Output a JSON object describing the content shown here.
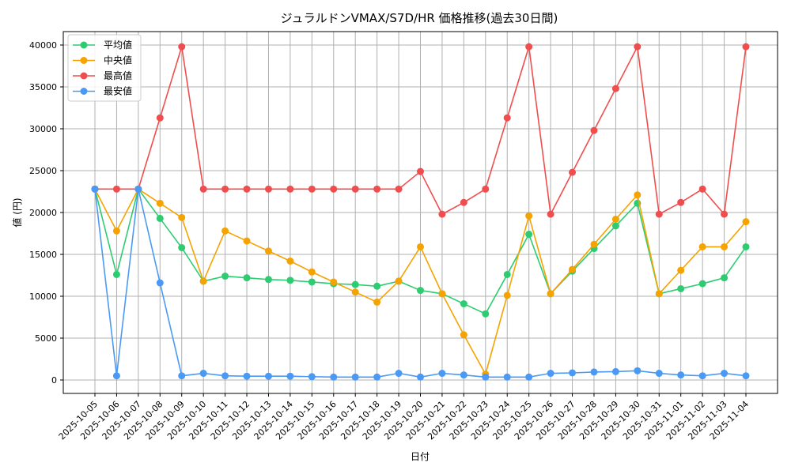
{
  "chart_data": {
    "type": "line",
    "title": "ジュラルドンVMAX/S7D/HR 価格推移(過去30日間)",
    "xlabel": "日付",
    "ylabel": "値 (円)",
    "ylim": [
      -1500,
      42000
    ],
    "yticks": [
      0,
      5000,
      10000,
      15000,
      20000,
      25000,
      30000,
      35000,
      40000
    ],
    "grid": true,
    "legend_position": "upper left",
    "x": [
      "2025-10-05",
      "2025-10-06",
      "2025-10-07",
      "2025-10-08",
      "2025-10-09",
      "2025-10-10",
      "2025-10-11",
      "2025-10-12",
      "2025-10-13",
      "2025-10-14",
      "2025-10-15",
      "2025-10-16",
      "2025-10-17",
      "2025-10-18",
      "2025-10-19",
      "2025-10-20",
      "2025-10-21",
      "2025-10-22",
      "2025-10-23",
      "2025-10-24",
      "2025-10-25",
      "2025-10-26",
      "2025-10-27",
      "2025-10-28",
      "2025-10-29",
      "2025-10-30",
      "2025-10-31",
      "2025-11-01",
      "2025-11-02",
      "2025-11-03",
      "2025-11-04"
    ],
    "series": [
      {
        "name": "平均値",
        "color": "#2ecc71",
        "values": [
          22800,
          12600,
          22800,
          19300,
          15800,
          11800,
          12400,
          12200,
          12000,
          11900,
          11700,
          11500,
          11400,
          11200,
          11800,
          10700,
          10300,
          9100,
          7900,
          12600,
          17400,
          10300,
          13000,
          15700,
          18400,
          21100,
          10300,
          10900,
          11500,
          12200,
          15900
        ]
      },
      {
        "name": "中央値",
        "color": "#f5a300",
        "values": [
          22800,
          17800,
          22800,
          21100,
          19400,
          11800,
          17800,
          16600,
          15400,
          14200,
          12900,
          11700,
          10500,
          9300,
          11800,
          15900,
          10300,
          5400,
          700,
          10100,
          19600,
          10300,
          13200,
          16200,
          19200,
          22100,
          10300,
          13100,
          15900,
          15900,
          18900
        ]
      },
      {
        "name": "最高値",
        "color": "#f04e4e",
        "values": [
          22800,
          22800,
          22800,
          31300,
          39800,
          22800,
          22800,
          22800,
          22800,
          22800,
          22800,
          22800,
          22800,
          22800,
          22800,
          24900,
          19800,
          21200,
          22800,
          31300,
          39800,
          19800,
          24800,
          29800,
          34800,
          39800,
          19800,
          21200,
          22800,
          19800,
          39800
        ]
      },
      {
        "name": "最安値",
        "color": "#4a9af5",
        "values": [
          22800,
          500,
          22800,
          11600,
          500,
          800,
          500,
          450,
          450,
          450,
          400,
          350,
          350,
          350,
          800,
          350,
          800,
          600,
          350,
          350,
          350,
          800,
          850,
          950,
          1000,
          1100,
          800,
          600,
          500,
          800,
          500
        ]
      }
    ]
  }
}
